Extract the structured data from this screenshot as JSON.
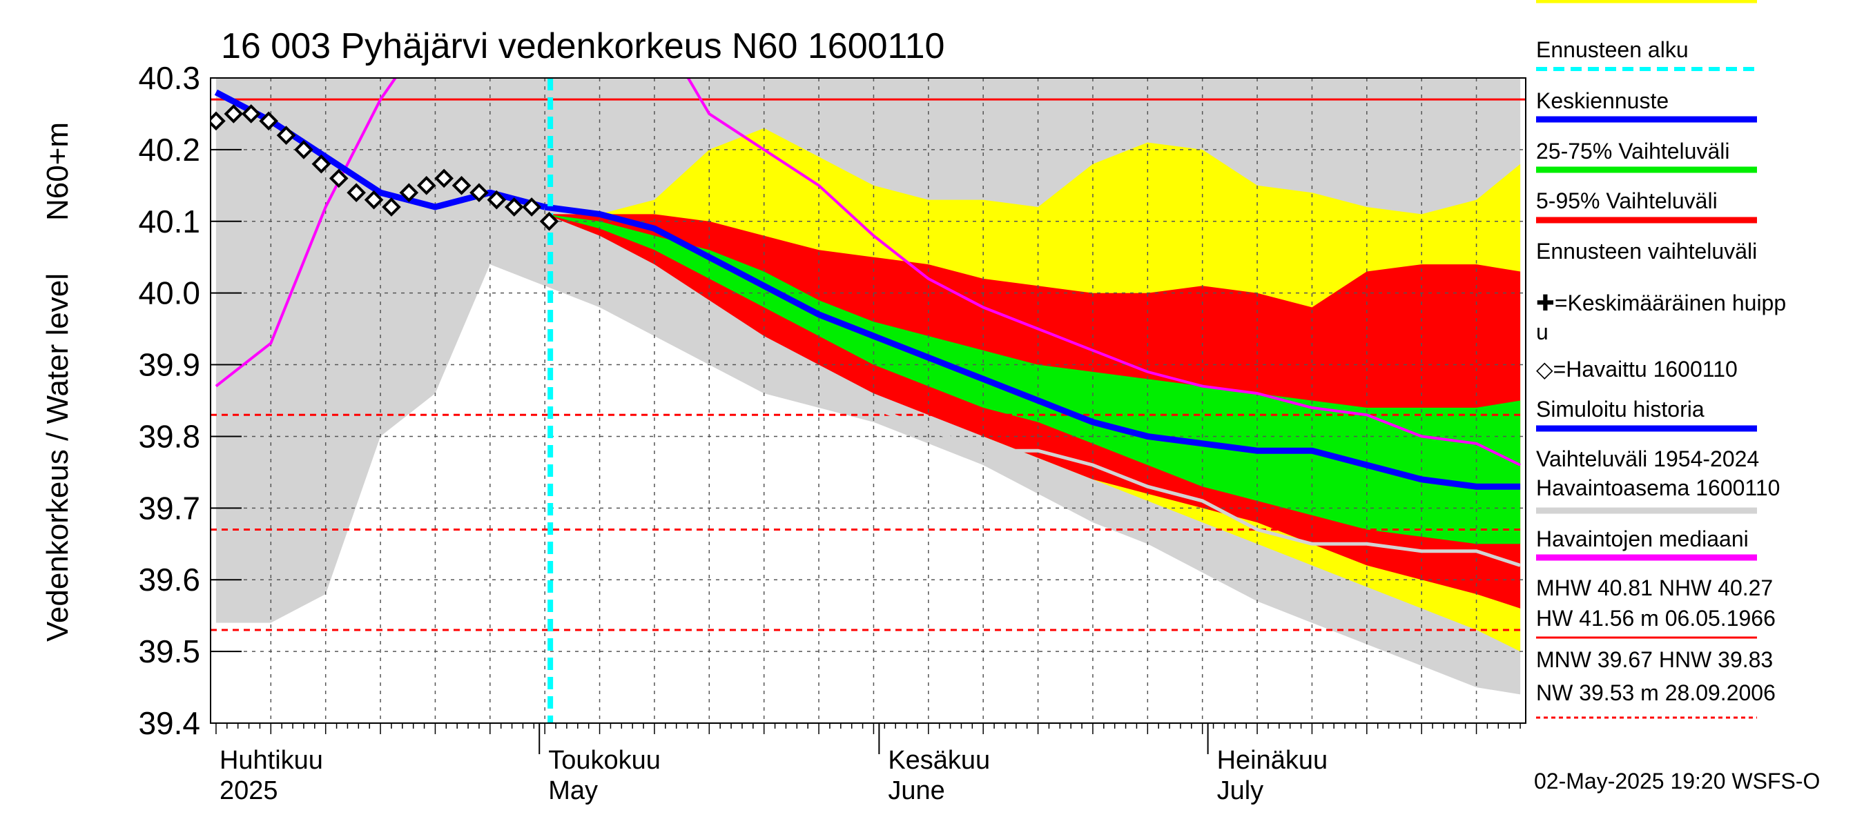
{
  "chart_data": {
    "type": "area",
    "title": "16 003 Pyhäjärvi vedenkorkeus N60 1600110",
    "ylabel_main": "Vedenkorkeus / Water level",
    "ylabel_unit": "N60+m",
    "ylim": [
      39.4,
      40.3
    ],
    "y_ticks": [
      "39.4",
      "39.5",
      "39.6",
      "39.7",
      "39.8",
      "39.9",
      "40.0",
      "40.1",
      "40.2",
      "40.3"
    ],
    "x_range_days": [
      -0.5,
      119.5
    ],
    "x_origin": "2025-04-01",
    "months": [
      {
        "fi": "Huhtikuu",
        "en": "2025",
        "start_day": 0
      },
      {
        "fi": "Toukokuu",
        "en": "May",
        "start_day": 30
      },
      {
        "fi": "Kesäkuu",
        "en": "June",
        "start_day": 61
      },
      {
        "fi": "Heinäkuu",
        "en": "July",
        "start_day": 91
      }
    ],
    "forecast_start_day": 30.5,
    "reference_lines": [
      {
        "name": "NHW",
        "value": 40.27,
        "style": "solid",
        "color": "#ff0000"
      },
      {
        "name": "HNW",
        "value": 39.83,
        "style": "dashed",
        "color": "#ff0000"
      },
      {
        "name": "MNW",
        "value": 39.67,
        "style": "dashed",
        "color": "#ff0000"
      },
      {
        "name": "NW",
        "value": 39.53,
        "style": "dashed",
        "color": "#ff0000"
      }
    ],
    "x": [
      0,
      5,
      10,
      15,
      20,
      25,
      30,
      35,
      40,
      45,
      50,
      55,
      60,
      65,
      70,
      75,
      80,
      85,
      90,
      95,
      100,
      105,
      110,
      115,
      119
    ],
    "series": {
      "hist_range_upper": [
        40.35,
        40.35,
        40.35,
        40.35,
        40.35,
        40.35,
        40.35,
        40.35,
        40.35,
        40.35,
        40.35,
        40.35,
        40.35,
        40.35,
        40.35,
        40.35,
        40.35,
        40.35,
        40.35,
        40.35,
        40.35,
        40.35,
        40.35,
        40.35,
        40.35
      ],
      "hist_range_lower": [
        39.54,
        39.54,
        39.58,
        39.8,
        39.86,
        40.04,
        40.01,
        39.98,
        39.94,
        39.9,
        39.86,
        39.84,
        39.82,
        39.79,
        39.76,
        39.72,
        39.68,
        39.65,
        39.61,
        39.57,
        39.54,
        39.51,
        39.48,
        39.45,
        39.44
      ],
      "forecast_range_upper": [
        40.35,
        40.35,
        40.35,
        40.35,
        40.35,
        40.35,
        40.11,
        40.11,
        40.13,
        40.2,
        40.23,
        40.19,
        40.15,
        40.13,
        40.13,
        40.12,
        40.18,
        40.21,
        40.2,
        40.15,
        40.14,
        40.12,
        40.11,
        40.13,
        40.18
      ],
      "forecast_range_lower": [
        40.35,
        40.35,
        40.35,
        40.35,
        40.35,
        40.35,
        40.11,
        40.09,
        40.05,
        40.0,
        39.95,
        39.91,
        39.87,
        39.84,
        39.8,
        39.77,
        39.74,
        39.71,
        39.68,
        39.65,
        39.62,
        39.59,
        39.56,
        39.53,
        39.5
      ],
      "p5_95_upper": [
        40.35,
        40.35,
        40.35,
        40.35,
        40.35,
        40.35,
        40.11,
        40.11,
        40.11,
        40.1,
        40.08,
        40.06,
        40.05,
        40.04,
        40.02,
        40.01,
        40.0,
        40.0,
        40.01,
        40.0,
        39.98,
        40.03,
        40.04,
        40.04,
        40.03
      ],
      "p5_95_lower": [
        40.35,
        40.35,
        40.35,
        40.35,
        40.35,
        40.35,
        40.11,
        40.08,
        40.04,
        39.99,
        39.94,
        39.9,
        39.86,
        39.83,
        39.8,
        39.77,
        39.74,
        39.72,
        39.7,
        39.68,
        39.65,
        39.62,
        39.6,
        39.58,
        39.56
      ],
      "p25_75_upper": [
        40.35,
        40.35,
        40.35,
        40.35,
        40.35,
        40.35,
        40.11,
        40.1,
        40.08,
        40.06,
        40.03,
        39.99,
        39.96,
        39.94,
        39.92,
        39.9,
        39.89,
        39.88,
        39.87,
        39.86,
        39.85,
        39.84,
        39.84,
        39.84,
        39.85
      ],
      "p25_75_lower": [
        40.35,
        40.35,
        40.35,
        40.35,
        40.35,
        40.35,
        40.11,
        40.09,
        40.06,
        40.02,
        39.98,
        39.94,
        39.9,
        39.87,
        39.84,
        39.82,
        39.79,
        39.76,
        39.73,
        39.71,
        39.69,
        39.67,
        39.66,
        39.65,
        39.65
      ],
      "mean_forecast": [
        40.28,
        40.24,
        40.19,
        40.14,
        40.12,
        40.14,
        40.12,
        40.11,
        40.09,
        40.05,
        40.01,
        39.97,
        39.94,
        39.91,
        39.88,
        39.85,
        39.82,
        39.8,
        39.79,
        39.78,
        39.78,
        39.76,
        39.74,
        39.73,
        39.73
      ],
      "simulated_history": [
        40.28,
        40.24,
        40.19,
        40.14,
        40.12,
        40.14,
        40.12,
        null,
        null,
        null,
        null,
        null,
        null,
        null,
        null,
        null,
        null,
        null,
        null,
        null,
        null,
        null,
        null,
        null,
        null
      ],
      "observation_median": [
        39.87,
        39.93,
        40.12,
        40.27,
        40.38,
        40.38,
        40.38,
        40.38,
        40.38,
        40.25,
        40.2,
        40.15,
        40.08,
        40.02,
        39.98,
        39.95,
        39.92,
        39.89,
        39.87,
        39.86,
        39.84,
        39.83,
        39.8,
        39.79,
        39.76
      ],
      "station_range": [
        null,
        null,
        null,
        null,
        null,
        null,
        null,
        null,
        null,
        null,
        null,
        null,
        39.84,
        39.81,
        39.78,
        39.78,
        39.76,
        39.73,
        39.71,
        39.67,
        39.65,
        39.65,
        39.64,
        39.64,
        39.62
      ],
      "observed_points": [
        40.24,
        40.25,
        40.25,
        40.24,
        40.22,
        40.2,
        40.18,
        40.16,
        40.14,
        40.13,
        40.12,
        40.14,
        40.15,
        40.16,
        40.15,
        40.14,
        40.13,
        40.12,
        40.12,
        40.1
      ],
      "observed_start_day": 0,
      "observed_step_days": 1.6
    },
    "legend": [
      {
        "label": "Ennusteen alku",
        "color": "#00ffff",
        "kind": "dashed"
      },
      {
        "label": "Keskiennuste",
        "color": "#0000ff",
        "kind": "line"
      },
      {
        "label": "25-75% Vaihteluväli",
        "color": "#00ee00",
        "kind": "line"
      },
      {
        "label": "5-95% Vaihteluväli",
        "color": "#ff0000",
        "kind": "line"
      },
      {
        "label": "Ennusteen vaihteluväli",
        "color": "#ffff00",
        "kind": "line"
      },
      {
        "label": "✚=Keskimääräinen huipp",
        "label2": "u",
        "color": "",
        "kind": "none"
      },
      {
        "label": "◇=Havaittu 1600110",
        "color": "",
        "kind": "none"
      },
      {
        "label": "Simuloitu historia",
        "color": "#0000ff",
        "kind": "line"
      },
      {
        "label": "Vaihteluväli 1954-2024",
        "label2": " Havaintoasema 1600110",
        "color": "#d3d3d3",
        "kind": "line"
      },
      {
        "label": "Havaintojen mediaani",
        "color": "#ff00ff",
        "kind": "line"
      },
      {
        "label": "MHW  40.81 NHW  40.27",
        "label2": "HW  41.56 m 06.05.1966",
        "color": "#ff0000",
        "kind": "line"
      },
      {
        "label": "MNW  39.67 HNW  39.83",
        "label2": "NW  39.53 m 28.09.2006",
        "color": "#ff0000",
        "kind": "dashed"
      }
    ],
    "grid": true,
    "legend_position": "right"
  },
  "footer": {
    "timestamp": "02-May-2025 19:20 WSFS-O"
  }
}
